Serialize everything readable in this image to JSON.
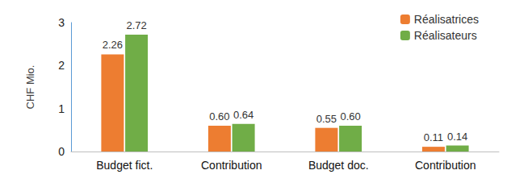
{
  "chart_data": {
    "type": "bar",
    "y_label": "CHF Mio.",
    "categories": [
      "Budget fict.",
      "Contribution",
      "Budget doc.",
      "Contribution"
    ],
    "series": [
      {
        "name": "Réalisatrices",
        "color": "#ed7d31",
        "values": [
          2.26,
          0.6,
          0.55,
          0.11
        ],
        "value_labels": [
          "2.26",
          "0.60",
          "0.55",
          "0.11"
        ]
      },
      {
        "name": "Réalisateurs",
        "color": "#70ad47",
        "values": [
          2.72,
          0.64,
          0.6,
          0.14
        ],
        "value_labels": [
          "2.72",
          "0.64",
          "0.60",
          "0.14"
        ]
      }
    ],
    "ylim": [
      0,
      3
    ],
    "yticks": [
      0,
      1,
      2,
      3
    ],
    "grid": false,
    "legend": "top-right",
    "data_labels": true
  }
}
